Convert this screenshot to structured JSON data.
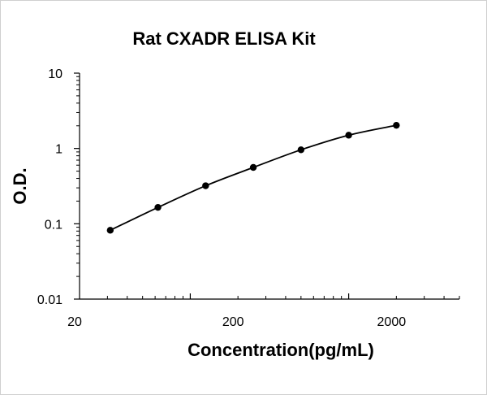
{
  "chart_data": {
    "type": "scatter",
    "title": "Rat CXADR ELISA Kit",
    "xlabel": "Concentration(pg/mL)",
    "ylabel": "O.D.",
    "x_scale": "log",
    "y_scale": "log",
    "xlim": [
      20,
      5000
    ],
    "ylim": [
      0.01,
      10
    ],
    "x_ticks": [
      {
        "value": 20,
        "label": "20"
      },
      {
        "value": 200,
        "label": "200"
      },
      {
        "value": 2000,
        "label": "2000"
      }
    ],
    "y_ticks": [
      {
        "value": 0.01,
        "label": "0.01"
      },
      {
        "value": 0.1,
        "label": "0.1"
      },
      {
        "value": 1,
        "label": "1"
      },
      {
        "value": 10,
        "label": "10"
      }
    ],
    "grid": false,
    "legend": "none",
    "series": [
      {
        "x": [
          31.25,
          62.5,
          125,
          250,
          500,
          1000,
          2000
        ],
        "y": [
          0.082,
          0.165,
          0.32,
          0.56,
          0.96,
          1.5,
          2.03
        ],
        "marker_color": "#000000",
        "line_color": "#000000",
        "fit_line": true
      }
    ]
  }
}
